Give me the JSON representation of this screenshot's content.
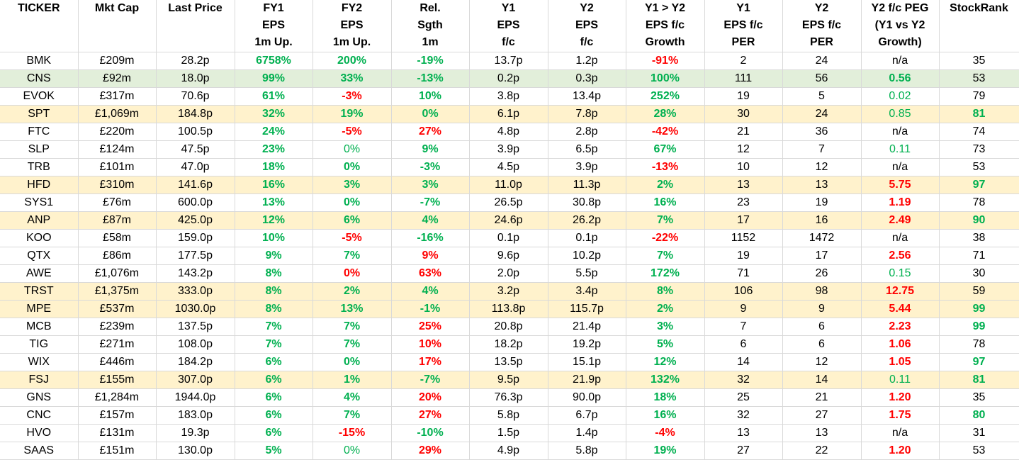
{
  "columns": [
    [
      "TICKER"
    ],
    [
      "Mkt Cap"
    ],
    [
      "Last Price"
    ],
    [
      "FY1",
      "EPS",
      "1m Up."
    ],
    [
      "FY2",
      "EPS",
      "1m Up."
    ],
    [
      "Rel.",
      "Sgth",
      "1m"
    ],
    [
      "Y1",
      "EPS",
      "f/c"
    ],
    [
      "Y2",
      "EPS",
      "f/c"
    ],
    [
      "Y1 > Y2",
      "EPS f/c",
      "Growth"
    ],
    [
      "Y1",
      "EPS f/c",
      "PER"
    ],
    [
      "Y2",
      "EPS f/c",
      "PER"
    ],
    [
      "Y2 f/c PEG",
      "(Y1 vs Y2",
      "Growth)"
    ],
    [
      "StockRank"
    ]
  ],
  "colors": {
    "green": "#00b050",
    "red": "#ff0000",
    "highlight_yellow": "#fff2cc",
    "highlight_green": "#e2efda"
  },
  "rows": [
    {
      "hl": "",
      "cells": [
        [
          "BMK",
          "k-n"
        ],
        [
          "£209m",
          "k-n"
        ],
        [
          "28.2p",
          "k-n"
        ],
        [
          "6758%",
          "g-b"
        ],
        [
          "200%",
          "g-b"
        ],
        [
          "-19%",
          "g-b"
        ],
        [
          "13.7p",
          "k-n"
        ],
        [
          "1.2p",
          "k-n"
        ],
        [
          "-91%",
          "r-b"
        ],
        [
          "2",
          "k-n"
        ],
        [
          "24",
          "k-n"
        ],
        [
          "n/a",
          "k-n"
        ],
        [
          "35",
          "k-n"
        ]
      ]
    },
    {
      "hl": "green",
      "cells": [
        [
          "CNS",
          "k-n"
        ],
        [
          "£92m",
          "k-n"
        ],
        [
          "18.0p",
          "k-n"
        ],
        [
          "99%",
          "g-b"
        ],
        [
          "33%",
          "g-b"
        ],
        [
          "-13%",
          "g-b"
        ],
        [
          "0.2p",
          "k-n"
        ],
        [
          "0.3p",
          "k-n"
        ],
        [
          "100%",
          "g-b"
        ],
        [
          "111",
          "k-n"
        ],
        [
          "56",
          "k-n"
        ],
        [
          "0.56",
          "g-b"
        ],
        [
          "53",
          "k-n"
        ]
      ]
    },
    {
      "hl": "",
      "cells": [
        [
          "EVOK",
          "k-n"
        ],
        [
          "£317m",
          "k-n"
        ],
        [
          "70.6p",
          "k-n"
        ],
        [
          "61%",
          "g-b"
        ],
        [
          "-3%",
          "r-b"
        ],
        [
          "10%",
          "g-b"
        ],
        [
          "3.8p",
          "k-n"
        ],
        [
          "13.4p",
          "k-n"
        ],
        [
          "252%",
          "g-b"
        ],
        [
          "19",
          "k-n"
        ],
        [
          "5",
          "k-n"
        ],
        [
          "0.02",
          "g-n"
        ],
        [
          "79",
          "k-n"
        ]
      ]
    },
    {
      "hl": "yellow",
      "cells": [
        [
          "SPT",
          "k-n"
        ],
        [
          "£1,069m",
          "k-n"
        ],
        [
          "184.8p",
          "k-n"
        ],
        [
          "32%",
          "g-b"
        ],
        [
          "19%",
          "g-b"
        ],
        [
          "0%",
          "g-b"
        ],
        [
          "6.1p",
          "k-n"
        ],
        [
          "7.8p",
          "k-n"
        ],
        [
          "28%",
          "g-b"
        ],
        [
          "30",
          "k-n"
        ],
        [
          "24",
          "k-n"
        ],
        [
          "0.85",
          "g-n"
        ],
        [
          "81",
          "g-b"
        ]
      ]
    },
    {
      "hl": "",
      "cells": [
        [
          "FTC",
          "k-n"
        ],
        [
          "£220m",
          "k-n"
        ],
        [
          "100.5p",
          "k-n"
        ],
        [
          "24%",
          "g-b"
        ],
        [
          "-5%",
          "r-b"
        ],
        [
          "27%",
          "r-b"
        ],
        [
          "4.8p",
          "k-n"
        ],
        [
          "2.8p",
          "k-n"
        ],
        [
          "-42%",
          "r-b"
        ],
        [
          "21",
          "k-n"
        ],
        [
          "36",
          "k-n"
        ],
        [
          "n/a",
          "k-n"
        ],
        [
          "74",
          "k-n"
        ]
      ]
    },
    {
      "hl": "",
      "cells": [
        [
          "SLP",
          "k-n"
        ],
        [
          "£124m",
          "k-n"
        ],
        [
          "47.5p",
          "k-n"
        ],
        [
          "23%",
          "g-b"
        ],
        [
          "0%",
          "g-n"
        ],
        [
          "9%",
          "g-b"
        ],
        [
          "3.9p",
          "k-n"
        ],
        [
          "6.5p",
          "k-n"
        ],
        [
          "67%",
          "g-b"
        ],
        [
          "12",
          "k-n"
        ],
        [
          "7",
          "k-n"
        ],
        [
          "0.11",
          "g-n"
        ],
        [
          "73",
          "k-n"
        ]
      ]
    },
    {
      "hl": "",
      "cells": [
        [
          "TRB",
          "k-n"
        ],
        [
          "£101m",
          "k-n"
        ],
        [
          "47.0p",
          "k-n"
        ],
        [
          "18%",
          "g-b"
        ],
        [
          "0%",
          "g-b"
        ],
        [
          "-3%",
          "g-b"
        ],
        [
          "4.5p",
          "k-n"
        ],
        [
          "3.9p",
          "k-n"
        ],
        [
          "-13%",
          "r-b"
        ],
        [
          "10",
          "k-n"
        ],
        [
          "12",
          "k-n"
        ],
        [
          "n/a",
          "k-n"
        ],
        [
          "53",
          "k-n"
        ]
      ]
    },
    {
      "hl": "yellow",
      "cells": [
        [
          "HFD",
          "k-n"
        ],
        [
          "£310m",
          "k-n"
        ],
        [
          "141.6p",
          "k-n"
        ],
        [
          "16%",
          "g-b"
        ],
        [
          "3%",
          "g-b"
        ],
        [
          "3%",
          "g-b"
        ],
        [
          "11.0p",
          "k-n"
        ],
        [
          "11.3p",
          "k-n"
        ],
        [
          "2%",
          "g-b"
        ],
        [
          "13",
          "k-n"
        ],
        [
          "13",
          "k-n"
        ],
        [
          "5.75",
          "r-b"
        ],
        [
          "97",
          "g-b"
        ]
      ]
    },
    {
      "hl": "",
      "cells": [
        [
          "SYS1",
          "k-n"
        ],
        [
          "£76m",
          "k-n"
        ],
        [
          "600.0p",
          "k-n"
        ],
        [
          "13%",
          "g-b"
        ],
        [
          "0%",
          "g-b"
        ],
        [
          "-7%",
          "g-b"
        ],
        [
          "26.5p",
          "k-n"
        ],
        [
          "30.8p",
          "k-n"
        ],
        [
          "16%",
          "g-b"
        ],
        [
          "23",
          "k-n"
        ],
        [
          "19",
          "k-n"
        ],
        [
          "1.19",
          "r-b"
        ],
        [
          "78",
          "k-n"
        ]
      ]
    },
    {
      "hl": "yellow",
      "cells": [
        [
          "ANP",
          "k-n"
        ],
        [
          "£87m",
          "k-n"
        ],
        [
          "425.0p",
          "k-n"
        ],
        [
          "12%",
          "g-b"
        ],
        [
          "6%",
          "g-b"
        ],
        [
          "4%",
          "g-b"
        ],
        [
          "24.6p",
          "k-n"
        ],
        [
          "26.2p",
          "k-n"
        ],
        [
          "7%",
          "g-b"
        ],
        [
          "17",
          "k-n"
        ],
        [
          "16",
          "k-n"
        ],
        [
          "2.49",
          "r-b"
        ],
        [
          "90",
          "g-b"
        ]
      ]
    },
    {
      "hl": "",
      "cells": [
        [
          "KOO",
          "k-n"
        ],
        [
          "£58m",
          "k-n"
        ],
        [
          "159.0p",
          "k-n"
        ],
        [
          "10%",
          "g-b"
        ],
        [
          "-5%",
          "r-b"
        ],
        [
          "-16%",
          "g-b"
        ],
        [
          "0.1p",
          "k-n"
        ],
        [
          "0.1p",
          "k-n"
        ],
        [
          "-22%",
          "r-b"
        ],
        [
          "1152",
          "k-n"
        ],
        [
          "1472",
          "k-n"
        ],
        [
          "n/a",
          "k-n"
        ],
        [
          "38",
          "k-n"
        ]
      ]
    },
    {
      "hl": "",
      "cells": [
        [
          "QTX",
          "k-n"
        ],
        [
          "£86m",
          "k-n"
        ],
        [
          "177.5p",
          "k-n"
        ],
        [
          "9%",
          "g-b"
        ],
        [
          "7%",
          "g-b"
        ],
        [
          "9%",
          "r-b"
        ],
        [
          "9.6p",
          "k-n"
        ],
        [
          "10.2p",
          "k-n"
        ],
        [
          "7%",
          "g-b"
        ],
        [
          "19",
          "k-n"
        ],
        [
          "17",
          "k-n"
        ],
        [
          "2.56",
          "r-b"
        ],
        [
          "71",
          "k-n"
        ]
      ]
    },
    {
      "hl": "",
      "cells": [
        [
          "AWE",
          "k-n"
        ],
        [
          "£1,076m",
          "k-n"
        ],
        [
          "143.2p",
          "k-n"
        ],
        [
          "8%",
          "g-b"
        ],
        [
          "0%",
          "r-b"
        ],
        [
          "63%",
          "r-b"
        ],
        [
          "2.0p",
          "k-n"
        ],
        [
          "5.5p",
          "k-n"
        ],
        [
          "172%",
          "g-b"
        ],
        [
          "71",
          "k-n"
        ],
        [
          "26",
          "k-n"
        ],
        [
          "0.15",
          "g-n"
        ],
        [
          "30",
          "k-n"
        ]
      ]
    },
    {
      "hl": "yellow",
      "cells": [
        [
          "TRST",
          "k-n"
        ],
        [
          "£1,375m",
          "k-n"
        ],
        [
          "333.0p",
          "k-n"
        ],
        [
          "8%",
          "g-b"
        ],
        [
          "2%",
          "g-b"
        ],
        [
          "4%",
          "g-b"
        ],
        [
          "3.2p",
          "k-n"
        ],
        [
          "3.4p",
          "k-n"
        ],
        [
          "8%",
          "g-b"
        ],
        [
          "106",
          "k-n"
        ],
        [
          "98",
          "k-n"
        ],
        [
          "12.75",
          "r-b"
        ],
        [
          "59",
          "k-n"
        ]
      ]
    },
    {
      "hl": "yellow",
      "cells": [
        [
          "MPE",
          "k-n"
        ],
        [
          "£537m",
          "k-n"
        ],
        [
          "1030.0p",
          "k-n"
        ],
        [
          "8%",
          "g-b"
        ],
        [
          "13%",
          "g-b"
        ],
        [
          "-1%",
          "g-b"
        ],
        [
          "113.8p",
          "k-n"
        ],
        [
          "115.7p",
          "k-n"
        ],
        [
          "2%",
          "g-b"
        ],
        [
          "9",
          "k-n"
        ],
        [
          "9",
          "k-n"
        ],
        [
          "5.44",
          "r-b"
        ],
        [
          "99",
          "g-b"
        ]
      ]
    },
    {
      "hl": "",
      "cells": [
        [
          "MCB",
          "k-n"
        ],
        [
          "£239m",
          "k-n"
        ],
        [
          "137.5p",
          "k-n"
        ],
        [
          "7%",
          "g-b"
        ],
        [
          "7%",
          "g-b"
        ],
        [
          "25%",
          "r-b"
        ],
        [
          "20.8p",
          "k-n"
        ],
        [
          "21.4p",
          "k-n"
        ],
        [
          "3%",
          "g-b"
        ],
        [
          "7",
          "k-n"
        ],
        [
          "6",
          "k-n"
        ],
        [
          "2.23",
          "r-b"
        ],
        [
          "99",
          "g-b"
        ]
      ]
    },
    {
      "hl": "",
      "cells": [
        [
          "TIG",
          "k-n"
        ],
        [
          "£271m",
          "k-n"
        ],
        [
          "108.0p",
          "k-n"
        ],
        [
          "7%",
          "g-b"
        ],
        [
          "7%",
          "g-b"
        ],
        [
          "10%",
          "r-b"
        ],
        [
          "18.2p",
          "k-n"
        ],
        [
          "19.2p",
          "k-n"
        ],
        [
          "5%",
          "g-b"
        ],
        [
          "6",
          "k-n"
        ],
        [
          "6",
          "k-n"
        ],
        [
          "1.06",
          "r-b"
        ],
        [
          "78",
          "k-n"
        ]
      ]
    },
    {
      "hl": "",
      "cells": [
        [
          "WIX",
          "k-n"
        ],
        [
          "£446m",
          "k-n"
        ],
        [
          "184.2p",
          "k-n"
        ],
        [
          "6%",
          "g-b"
        ],
        [
          "0%",
          "g-b"
        ],
        [
          "17%",
          "r-b"
        ],
        [
          "13.5p",
          "k-n"
        ],
        [
          "15.1p",
          "k-n"
        ],
        [
          "12%",
          "g-b"
        ],
        [
          "14",
          "k-n"
        ],
        [
          "12",
          "k-n"
        ],
        [
          "1.05",
          "r-b"
        ],
        [
          "97",
          "g-b"
        ]
      ]
    },
    {
      "hl": "yellow",
      "cells": [
        [
          "FSJ",
          "k-n"
        ],
        [
          "£155m",
          "k-n"
        ],
        [
          "307.0p",
          "k-n"
        ],
        [
          "6%",
          "g-b"
        ],
        [
          "1%",
          "g-b"
        ],
        [
          "-7%",
          "g-b"
        ],
        [
          "9.5p",
          "k-n"
        ],
        [
          "21.9p",
          "k-n"
        ],
        [
          "132%",
          "g-b"
        ],
        [
          "32",
          "k-n"
        ],
        [
          "14",
          "k-n"
        ],
        [
          "0.11",
          "g-n"
        ],
        [
          "81",
          "g-b"
        ]
      ]
    },
    {
      "hl": "",
      "cells": [
        [
          "GNS",
          "k-n"
        ],
        [
          "£1,284m",
          "k-n"
        ],
        [
          "1944.0p",
          "k-n"
        ],
        [
          "6%",
          "g-b"
        ],
        [
          "4%",
          "g-b"
        ],
        [
          "20%",
          "r-b"
        ],
        [
          "76.3p",
          "k-n"
        ],
        [
          "90.0p",
          "k-n"
        ],
        [
          "18%",
          "g-b"
        ],
        [
          "25",
          "k-n"
        ],
        [
          "21",
          "k-n"
        ],
        [
          "1.20",
          "r-b"
        ],
        [
          "35",
          "k-n"
        ]
      ]
    },
    {
      "hl": "",
      "cells": [
        [
          "CNC",
          "k-n"
        ],
        [
          "£157m",
          "k-n"
        ],
        [
          "183.0p",
          "k-n"
        ],
        [
          "6%",
          "g-b"
        ],
        [
          "7%",
          "g-b"
        ],
        [
          "27%",
          "r-b"
        ],
        [
          "5.8p",
          "k-n"
        ],
        [
          "6.7p",
          "k-n"
        ],
        [
          "16%",
          "g-b"
        ],
        [
          "32",
          "k-n"
        ],
        [
          "27",
          "k-n"
        ],
        [
          "1.75",
          "r-b"
        ],
        [
          "80",
          "g-b"
        ]
      ]
    },
    {
      "hl": "",
      "cells": [
        [
          "HVO",
          "k-n"
        ],
        [
          "£131m",
          "k-n"
        ],
        [
          "19.3p",
          "k-n"
        ],
        [
          "6%",
          "g-b"
        ],
        [
          "-15%",
          "r-b"
        ],
        [
          "-10%",
          "g-b"
        ],
        [
          "1.5p",
          "k-n"
        ],
        [
          "1.4p",
          "k-n"
        ],
        [
          "-4%",
          "r-b"
        ],
        [
          "13",
          "k-n"
        ],
        [
          "13",
          "k-n"
        ],
        [
          "n/a",
          "k-n"
        ],
        [
          "31",
          "k-n"
        ]
      ]
    },
    {
      "hl": "",
      "cells": [
        [
          "SAAS",
          "k-n"
        ],
        [
          "£151m",
          "k-n"
        ],
        [
          "130.0p",
          "k-n"
        ],
        [
          "5%",
          "g-b"
        ],
        [
          "0%",
          "g-n"
        ],
        [
          "29%",
          "r-b"
        ],
        [
          "4.9p",
          "k-n"
        ],
        [
          "5.8p",
          "k-n"
        ],
        [
          "19%",
          "g-b"
        ],
        [
          "27",
          "k-n"
        ],
        [
          "22",
          "k-n"
        ],
        [
          "1.20",
          "r-b"
        ],
        [
          "53",
          "k-n"
        ]
      ]
    }
  ]
}
